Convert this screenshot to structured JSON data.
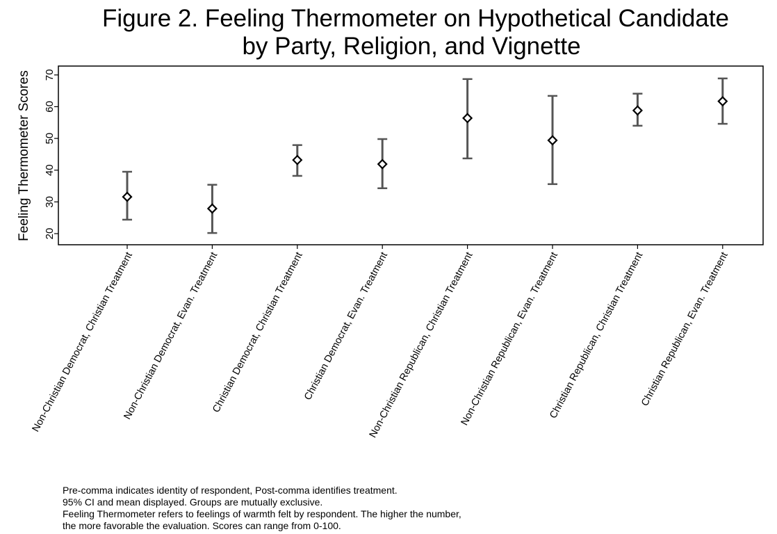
{
  "chart_data": {
    "type": "errorbar",
    "title": [
      "Figure 2. Feeling Thermometer on Hypothetical Candidate",
      "by Party, Religion, and Vignette"
    ],
    "y_label": "Feeling Thermometer Scores",
    "categories": [
      "Non-Christian Democrat, Christian Treatment",
      "Non-Christian Democrat, Evan. Treatment",
      "Christian Democrat, Christian Treatment",
      "Christian Democrat, Evan. Treatment",
      "Non-Christian Republican, Christian Treatment",
      "Non-Christian Republican, Evan. Treatment",
      "Christian Republican, Christian Treatment",
      "Christian Republican, Evan. Treatment"
    ],
    "values": [
      31.6,
      27.9,
      43.2,
      41.9,
      56.4,
      49.4,
      58.8,
      61.7
    ],
    "lower": [
      24.4,
      20.2,
      38.2,
      34.3,
      43.7,
      35.6,
      54.0,
      54.6
    ],
    "upper": [
      39.5,
      35.4,
      47.9,
      49.8,
      68.7,
      63.4,
      64.1,
      68.9
    ],
    "color": "#555555",
    "marker_color": "#000000",
    "ylim": [
      16.5,
      72.8
    ],
    "yticks": [
      20,
      30,
      40,
      50,
      60,
      70
    ],
    "notes": [
      "Pre-comma indicates identity of respondent, Post-comma identifies treatment.",
      "95% CI and mean displayed. Groups are mutually exclusive.",
      "Feeling Thermometer refers to feelings of warmth felt by respondent. The higher the number,",
      "the more favorable the evaluation. Scores can range from 0-100."
    ]
  }
}
